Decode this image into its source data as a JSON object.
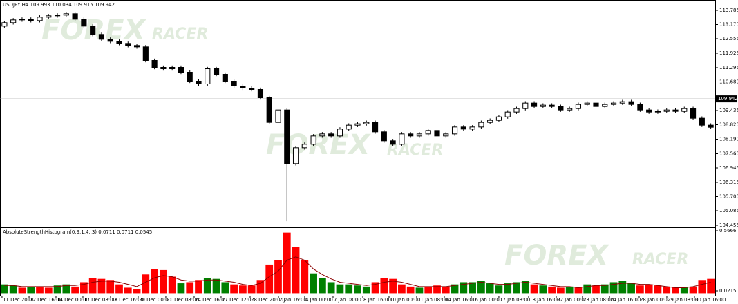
{
  "chart_data": [
    {
      "type": "candlestick",
      "title": "USDJPY,H4  109.993 110.034 109.915 109.942",
      "watermark": [
        "FOREX",
        "RACER"
      ],
      "up_color": "#ffffff",
      "down_color": "#000000",
      "x": [
        0,
        1,
        2,
        3,
        4,
        5,
        6,
        7,
        8,
        9,
        10,
        11,
        12,
        13,
        14,
        15,
        16,
        17,
        18,
        19,
        20,
        21,
        22,
        23,
        24,
        25,
        26,
        27,
        28,
        29,
        30,
        31,
        32,
        33,
        34,
        35,
        36,
        37,
        38,
        39,
        40,
        41,
        42,
        43,
        44,
        45,
        46,
        47,
        48,
        49,
        50,
        51,
        52,
        53,
        54,
        55,
        56,
        57,
        58,
        59,
        60,
        61,
        62,
        63,
        64,
        65,
        66,
        67,
        68,
        69,
        70,
        71,
        72,
        73,
        74,
        75,
        76,
        77,
        78,
        79,
        80
      ],
      "open": [
        113.1,
        113.25,
        113.37,
        113.4,
        113.34,
        113.49,
        113.55,
        113.58,
        113.64,
        113.4,
        113.1,
        112.74,
        112.53,
        112.44,
        112.35,
        112.26,
        112.2,
        111.61,
        111.31,
        111.25,
        111.31,
        111.1,
        110.71,
        110.59,
        111.25,
        111.01,
        110.71,
        110.5,
        110.41,
        110.35,
        109.99,
        108.92,
        109.46,
        107.13,
        107.82,
        107.97,
        108.33,
        108.42,
        108.33,
        108.63,
        108.8,
        108.86,
        108.92,
        108.51,
        108.12,
        107.97,
        108.42,
        108.33,
        108.42,
        108.57,
        108.33,
        108.42,
        108.72,
        108.63,
        108.72,
        108.92,
        109.01,
        109.16,
        109.37,
        109.52,
        109.76,
        109.61,
        109.67,
        109.61,
        109.46,
        109.52,
        109.7,
        109.76,
        109.61,
        109.7,
        109.76,
        109.82,
        109.7,
        109.46,
        109.37,
        109.4,
        109.46,
        109.4,
        109.52,
        109.1,
        108.8
      ],
      "high": [
        113.33,
        113.45,
        113.48,
        113.48,
        113.57,
        113.63,
        113.66,
        113.72,
        113.72,
        113.48,
        113.18,
        112.82,
        112.61,
        112.52,
        112.43,
        112.34,
        112.28,
        111.69,
        111.39,
        111.39,
        111.39,
        111.18,
        110.79,
        111.33,
        111.33,
        111.09,
        110.79,
        110.58,
        110.49,
        110.43,
        110.07,
        109.54,
        109.54,
        107.9,
        108.05,
        108.41,
        108.5,
        108.5,
        108.71,
        108.88,
        108.94,
        109.0,
        109.0,
        108.59,
        108.2,
        108.5,
        108.5,
        108.5,
        108.65,
        108.65,
        108.5,
        108.8,
        108.8,
        108.8,
        109.0,
        109.09,
        109.24,
        109.45,
        109.6,
        109.84,
        109.84,
        109.75,
        109.75,
        109.69,
        109.6,
        109.78,
        109.84,
        109.84,
        109.78,
        109.84,
        109.9,
        109.9,
        109.78,
        109.54,
        109.48,
        109.54,
        109.54,
        109.6,
        109.6,
        109.18,
        108.88
      ],
      "low": [
        113.02,
        113.17,
        113.29,
        113.26,
        113.26,
        113.41,
        113.47,
        113.5,
        113.32,
        113.02,
        112.66,
        112.45,
        112.36,
        112.27,
        112.18,
        112.12,
        111.53,
        111.23,
        111.17,
        111.17,
        111.02,
        110.63,
        110.51,
        110.51,
        110.93,
        110.63,
        110.42,
        110.33,
        110.27,
        109.91,
        108.84,
        108.84,
        104.63,
        107.05,
        107.74,
        107.89,
        108.25,
        108.25,
        108.25,
        108.55,
        108.72,
        108.78,
        108.43,
        108.04,
        107.89,
        107.89,
        108.25,
        108.25,
        108.34,
        108.25,
        108.25,
        108.34,
        108.55,
        108.55,
        108.64,
        108.84,
        108.93,
        109.08,
        109.29,
        109.44,
        109.53,
        109.53,
        109.53,
        109.38,
        109.38,
        109.44,
        109.62,
        109.53,
        109.53,
        109.62,
        109.68,
        109.62,
        109.38,
        109.29,
        109.29,
        109.32,
        109.32,
        109.32,
        109.02,
        108.72,
        108.63
      ],
      "close": [
        113.25,
        113.37,
        113.4,
        113.34,
        113.49,
        113.55,
        113.58,
        113.64,
        113.4,
        113.1,
        112.74,
        112.53,
        112.44,
        112.35,
        112.26,
        112.2,
        111.61,
        111.31,
        111.25,
        111.31,
        111.1,
        110.71,
        110.59,
        111.25,
        111.01,
        110.71,
        110.5,
        110.41,
        110.35,
        109.99,
        108.92,
        109.46,
        107.13,
        107.82,
        107.97,
        108.33,
        108.42,
        108.33,
        108.63,
        108.8,
        108.86,
        108.92,
        108.51,
        108.12,
        107.97,
        108.42,
        108.33,
        108.42,
        108.57,
        108.33,
        108.42,
        108.72,
        108.63,
        108.72,
        108.92,
        109.01,
        109.16,
        109.37,
        109.52,
        109.76,
        109.61,
        109.67,
        109.61,
        109.46,
        109.52,
        109.7,
        109.76,
        109.61,
        109.7,
        109.76,
        109.82,
        109.7,
        109.46,
        109.37,
        109.4,
        109.46,
        109.4,
        109.52,
        109.1,
        108.8,
        108.71
      ],
      "current_price": 109.942,
      "xlim": [
        -0.5,
        80.5
      ],
      "ylim": [
        104.395,
        114.235
      ],
      "yticks": [
        113.785,
        {
          "value": 113.17,
          "label": "113.170"
        },
        112.555,
        111.925,
        111.295,
        {
          "value": 110.68,
          "label": "110.680"
        },
        109.435,
        {
          "value": 108.82,
          "label": "108.820"
        },
        {
          "value": 108.19,
          "label": "108.190"
        },
        {
          "value": 107.56,
          "label": "107.560"
        },
        106.945,
        106.315,
        {
          "value": 105.7,
          "label": "105.700"
        },
        105.085,
        104.455
      ]
    },
    {
      "type": "histogram-bar",
      "title": "AbsoluteStrengthHistogram(0,9,1,4,,3) 0.0711 0.0711 0.0545",
      "watermark": [
        "FOREX",
        "RACER"
      ],
      "x": [
        0,
        1,
        2,
        3,
        4,
        5,
        6,
        7,
        8,
        9,
        10,
        11,
        12,
        13,
        14,
        15,
        16,
        17,
        18,
        19,
        20,
        21,
        22,
        23,
        24,
        25,
        26,
        27,
        28,
        29,
        30,
        31,
        32,
        33,
        34,
        35,
        36,
        37,
        38,
        39,
        40,
        41,
        42,
        43,
        44,
        45,
        46,
        47,
        48,
        49,
        50,
        51,
        52,
        53,
        54,
        55,
        56,
        57,
        58,
        59,
        60,
        61,
        62,
        63,
        64,
        65,
        66,
        67,
        68,
        69,
        70,
        71,
        72,
        73,
        74,
        75,
        76,
        77,
        78,
        79,
        80
      ],
      "series": [
        {
          "color": "#ff0000",
          "kind": "bar",
          "values": [
            null,
            null,
            0.05,
            null,
            0.06,
            0.05,
            null,
            null,
            0.06,
            0.1,
            0.14,
            0.13,
            0.12,
            0.08,
            0.05,
            0.04,
            0.17,
            0.22,
            0.21,
            0.15,
            null,
            0.1,
            0.12,
            null,
            null,
            null,
            0.08,
            0.07,
            0.07,
            0.12,
            0.26,
            0.3,
            0.55,
            0.42,
            0.3,
            null,
            null,
            null,
            null,
            null,
            null,
            null,
            0.1,
            0.14,
            0.13,
            0.08,
            0.06,
            null,
            0.06,
            0.07,
            0.06,
            null,
            null,
            null,
            null,
            null,
            null,
            null,
            null,
            null,
            0.08,
            null,
            0.06,
            0.05,
            null,
            0.05,
            null,
            0.07,
            null,
            null,
            null,
            null,
            0.07,
            0.08,
            0.07,
            0.06,
            0.05,
            null,
            0.06,
            0.12,
            0.13
          ]
        },
        {
          "color": "#008000",
          "kind": "bar",
          "values": [
            0.08,
            0.07,
            null,
            0.06,
            null,
            null,
            0.07,
            0.08,
            null,
            null,
            null,
            null,
            null,
            null,
            null,
            null,
            null,
            null,
            null,
            null,
            0.09,
            null,
            null,
            0.14,
            0.13,
            0.1,
            null,
            null,
            null,
            null,
            null,
            null,
            null,
            null,
            null,
            0.18,
            0.14,
            0.1,
            0.08,
            0.08,
            0.07,
            0.06,
            null,
            null,
            null,
            null,
            null,
            0.05,
            null,
            null,
            null,
            0.08,
            0.1,
            0.1,
            0.11,
            0.09,
            0.07,
            0.09,
            0.1,
            0.11,
            null,
            0.07,
            null,
            null,
            0.06,
            null,
            0.08,
            null,
            0.08,
            0.1,
            0.11,
            0.09,
            null,
            null,
            null,
            null,
            null,
            0.05,
            null,
            null,
            null
          ]
        },
        {
          "color": "#8b0000",
          "kind": "line",
          "values": [
            0.07,
            0.07,
            0.06,
            0.06,
            0.06,
            0.06,
            0.06,
            0.07,
            0.07,
            0.08,
            0.1,
            0.11,
            0.11,
            0.1,
            0.08,
            0.06,
            0.1,
            0.14,
            0.16,
            0.15,
            0.12,
            0.11,
            0.11,
            0.12,
            0.12,
            0.11,
            0.1,
            0.08,
            0.07,
            0.09,
            0.15,
            0.2,
            0.3,
            0.33,
            0.3,
            0.22,
            0.17,
            0.13,
            0.1,
            0.09,
            0.08,
            0.07,
            0.08,
            0.1,
            0.11,
            0.1,
            0.08,
            0.06,
            0.06,
            0.06,
            0.06,
            0.07,
            0.08,
            0.09,
            0.1,
            0.09,
            0.08,
            0.08,
            0.09,
            0.1,
            0.09,
            0.08,
            0.07,
            0.06,
            0.06,
            0.05,
            0.06,
            0.07,
            0.07,
            0.08,
            0.09,
            0.09,
            0.08,
            0.08,
            0.07,
            0.06,
            0.05,
            0.05,
            0.06,
            0.08,
            0.1
          ]
        }
      ],
      "xlim": [
        -0.5,
        80.5
      ],
      "ylim": [
        -0.0224,
        0.5917
      ],
      "yticks": [
        0.5666,
        0.0215
      ],
      "xticks": [
        {
          "value": -0.27,
          "label": "11 Dec 2018"
        },
        {
          "value": 2.79,
          "label": "12 Dec 16:00"
        },
        {
          "value": 5.84,
          "label": "14 Dec 00:00"
        },
        {
          "value": 8.89,
          "label": "17 Dec 08:00"
        },
        {
          "value": 12.02,
          "label": "18 Dec 16:00"
        },
        {
          "value": 15.15,
          "label": "20 Dec 00:00"
        },
        {
          "value": 18.28,
          "label": "21 Dec 08:00"
        },
        {
          "value": 21.49,
          "label": "24 Dec 16:00"
        },
        {
          "value": 24.54,
          "label": "27 Dec 12:00"
        },
        {
          "value": 27.83,
          "label": "28 Dec 20:00"
        },
        {
          "value": 31.04,
          "label": "2 Jan 16:00"
        },
        {
          "value": 34.01,
          "label": "4 Jan 00:00"
        },
        {
          "value": 37.22,
          "label": "7 Jan 08:00"
        },
        {
          "value": 40.59,
          "label": "8 Jan 16:00"
        },
        {
          "value": 43.56,
          "label": "10 Jan 00:00"
        },
        {
          "value": 46.69,
          "label": "11 Jan 08:00"
        },
        {
          "value": 49.82,
          "label": "14 Jan 16:00"
        },
        {
          "value": 52.87,
          "label": "16 Jan 00:00"
        },
        {
          "value": 56.0,
          "label": "17 Jan 08:00"
        },
        {
          "value": 59.37,
          "label": "18 Jan 16:00"
        },
        {
          "value": 62.5,
          "label": "22 Jan 00:00"
        },
        {
          "value": 65.47,
          "label": "23 Jan 08:00"
        },
        {
          "value": 68.53,
          "label": "24 Jan 16:00"
        },
        {
          "value": 71.89,
          "label": "28 Jan 00:00"
        },
        {
          "value": 75.02,
          "label": "29 Jan 08:00"
        },
        {
          "value": 78.15,
          "label": "30 Jan 16:00"
        }
      ]
    }
  ]
}
